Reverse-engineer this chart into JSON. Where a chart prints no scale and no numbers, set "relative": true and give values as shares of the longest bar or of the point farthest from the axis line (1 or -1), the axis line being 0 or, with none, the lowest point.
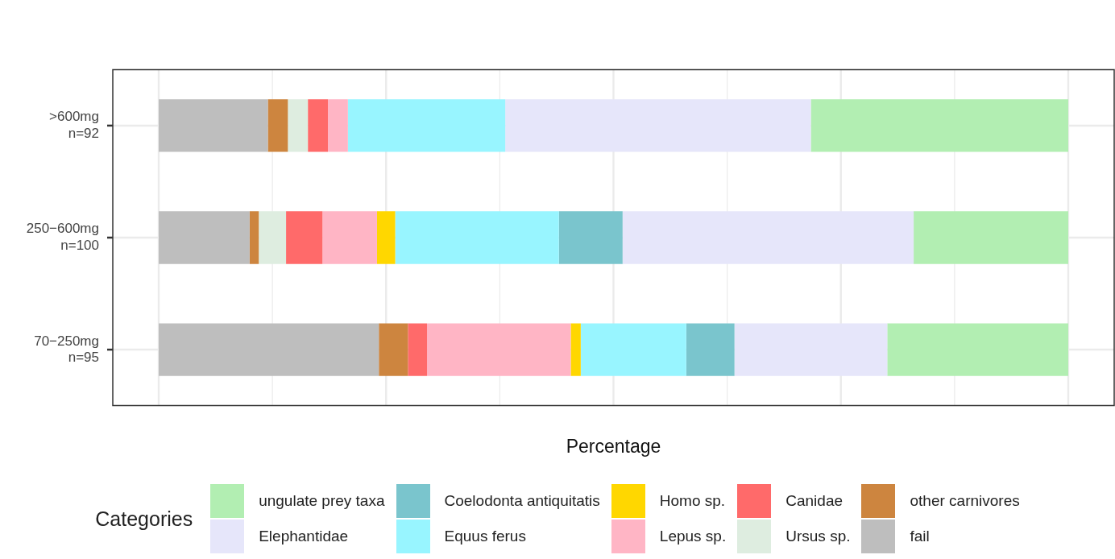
{
  "chart_data": {
    "type": "bar",
    "orientation": "horizontal",
    "stacked": true,
    "relative": true,
    "xlabel": "Percentage",
    "legend_title": "Categories",
    "legend": "bottom",
    "grid": true,
    "categories": [
      ">600mg\nn=92",
      "250−600mg\nn=100",
      "70−250mg\nn=95"
    ],
    "series": [
      {
        "name": "fail",
        "color": "#bebebe",
        "values": [
          0.12,
          0.1,
          0.242
        ]
      },
      {
        "name": "other carnivores",
        "color": "#cd853f",
        "values": [
          0.022,
          0.01,
          0.032
        ]
      },
      {
        "name": "Ursus sp.",
        "color": "#deede0",
        "values": [
          0.022,
          0.03,
          0
        ]
      },
      {
        "name": "Canidae",
        "color": "#ff6a6a",
        "values": [
          0.022,
          0.04,
          0.021
        ]
      },
      {
        "name": "Lepus sp.",
        "color": "#ffb5c5",
        "values": [
          0.022,
          0.06,
          0.158
        ]
      },
      {
        "name": "Homo sp.",
        "color": "#ffd700",
        "values": [
          0,
          0.02,
          0.011
        ]
      },
      {
        "name": "Equus ferus",
        "color": "#98f5ff",
        "values": [
          0.173,
          0.18,
          0.116
        ]
      },
      {
        "name": "Coelodonta antiquitatis",
        "color": "#7ac5cd",
        "values": [
          0,
          0.07,
          0.053
        ]
      },
      {
        "name": "Elephantidae",
        "color": "#e6e6fa",
        "values": [
          0.336,
          0.32,
          0.168
        ]
      },
      {
        "name": "ungulate prey taxa",
        "color": "#b2eeb2",
        "values": [
          0.283,
          0.17,
          0.199
        ]
      }
    ]
  }
}
